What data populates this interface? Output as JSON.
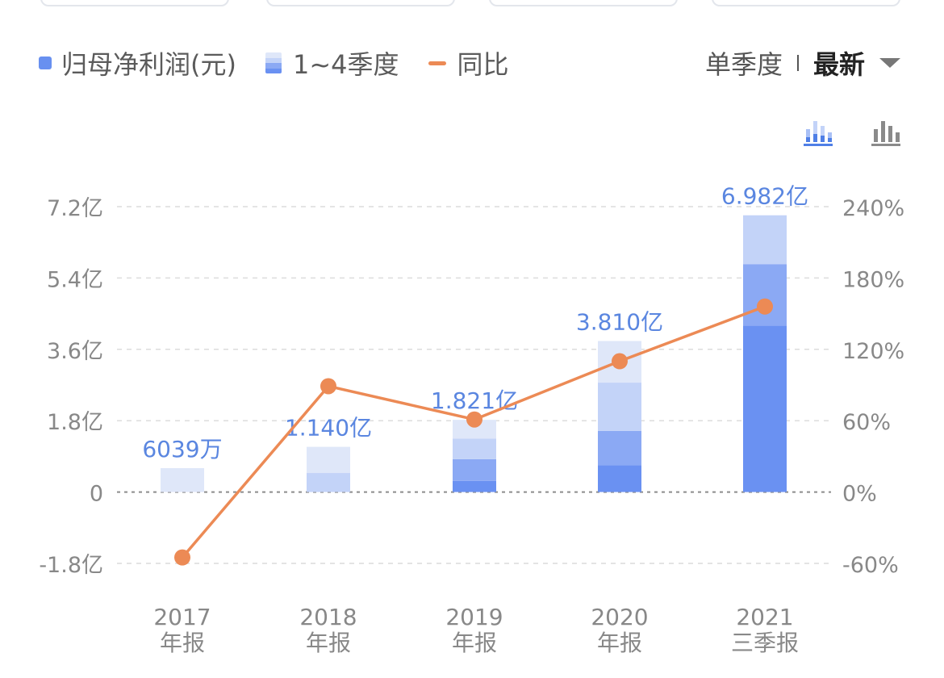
{
  "legend": {
    "profit": "归母净利润(元)",
    "quarters": "1~4季度",
    "yoy": "同比"
  },
  "controls": {
    "single_quarter": "单季度",
    "latest": "最新"
  },
  "icons": {
    "stacked_view": "stacked-bar-chart-icon",
    "bar_view": "bar-chart-icon",
    "dropdown": "caret-down-icon"
  },
  "colors": {
    "q1": "#6a91f2",
    "q2": "#8ba9f4",
    "q3": "#c3d3f8",
    "q4": "#dfe7f9",
    "yoy_line": "#ec8a55",
    "value_label": "#5a86e0",
    "axis_text": "#888888"
  },
  "chart_data": {
    "type": "bar",
    "stacked": true,
    "categories": [
      "2017\n年报",
      "2018\n年报",
      "2019\n年报",
      "2020\n年报",
      "2021\n三季报"
    ],
    "category_year": [
      "2017",
      "2018",
      "2019",
      "2020",
      "2021"
    ],
    "category_period": [
      "年报",
      "年报",
      "年报",
      "年报",
      "三季报"
    ],
    "value_labels": [
      "6039万",
      "1.140亿",
      "1.821亿",
      "3.810亿",
      "6.982亿"
    ],
    "totals_yi": [
      0.6039,
      1.14,
      1.821,
      3.81,
      6.982
    ],
    "series": [
      {
        "name": "1季度",
        "values_yi": [
          0,
          0,
          0.28,
          0.68,
          4.2
        ]
      },
      {
        "name": "2季度",
        "values_yi": [
          0,
          0,
          0.55,
          0.86,
          1.55
        ]
      },
      {
        "name": "3季度",
        "values_yi": [
          0,
          0.48,
          0.52,
          1.22,
          1.232
        ]
      },
      {
        "name": "4季度",
        "values_yi": [
          0.6039,
          0.66,
          0.471,
          1.05,
          0
        ]
      }
    ],
    "yoy_name": "同比",
    "yoy_percent": [
      -55,
      89,
      61,
      110,
      156
    ],
    "y_left": {
      "min": -1.8,
      "max": 7.2,
      "ticks": [
        -1.8,
        0,
        1.8,
        3.6,
        5.4,
        7.2
      ],
      "tick_labels": [
        "-1.8亿",
        "0",
        "1.8亿",
        "3.6亿",
        "5.4亿",
        "7.2亿"
      ]
    },
    "y_right": {
      "min": -60,
      "max": 240,
      "ticks": [
        -60,
        0,
        60,
        120,
        180,
        240
      ],
      "tick_labels": [
        "-60%",
        "0%",
        "60%",
        "120%",
        "180%",
        "240%"
      ]
    },
    "grid": true
  }
}
